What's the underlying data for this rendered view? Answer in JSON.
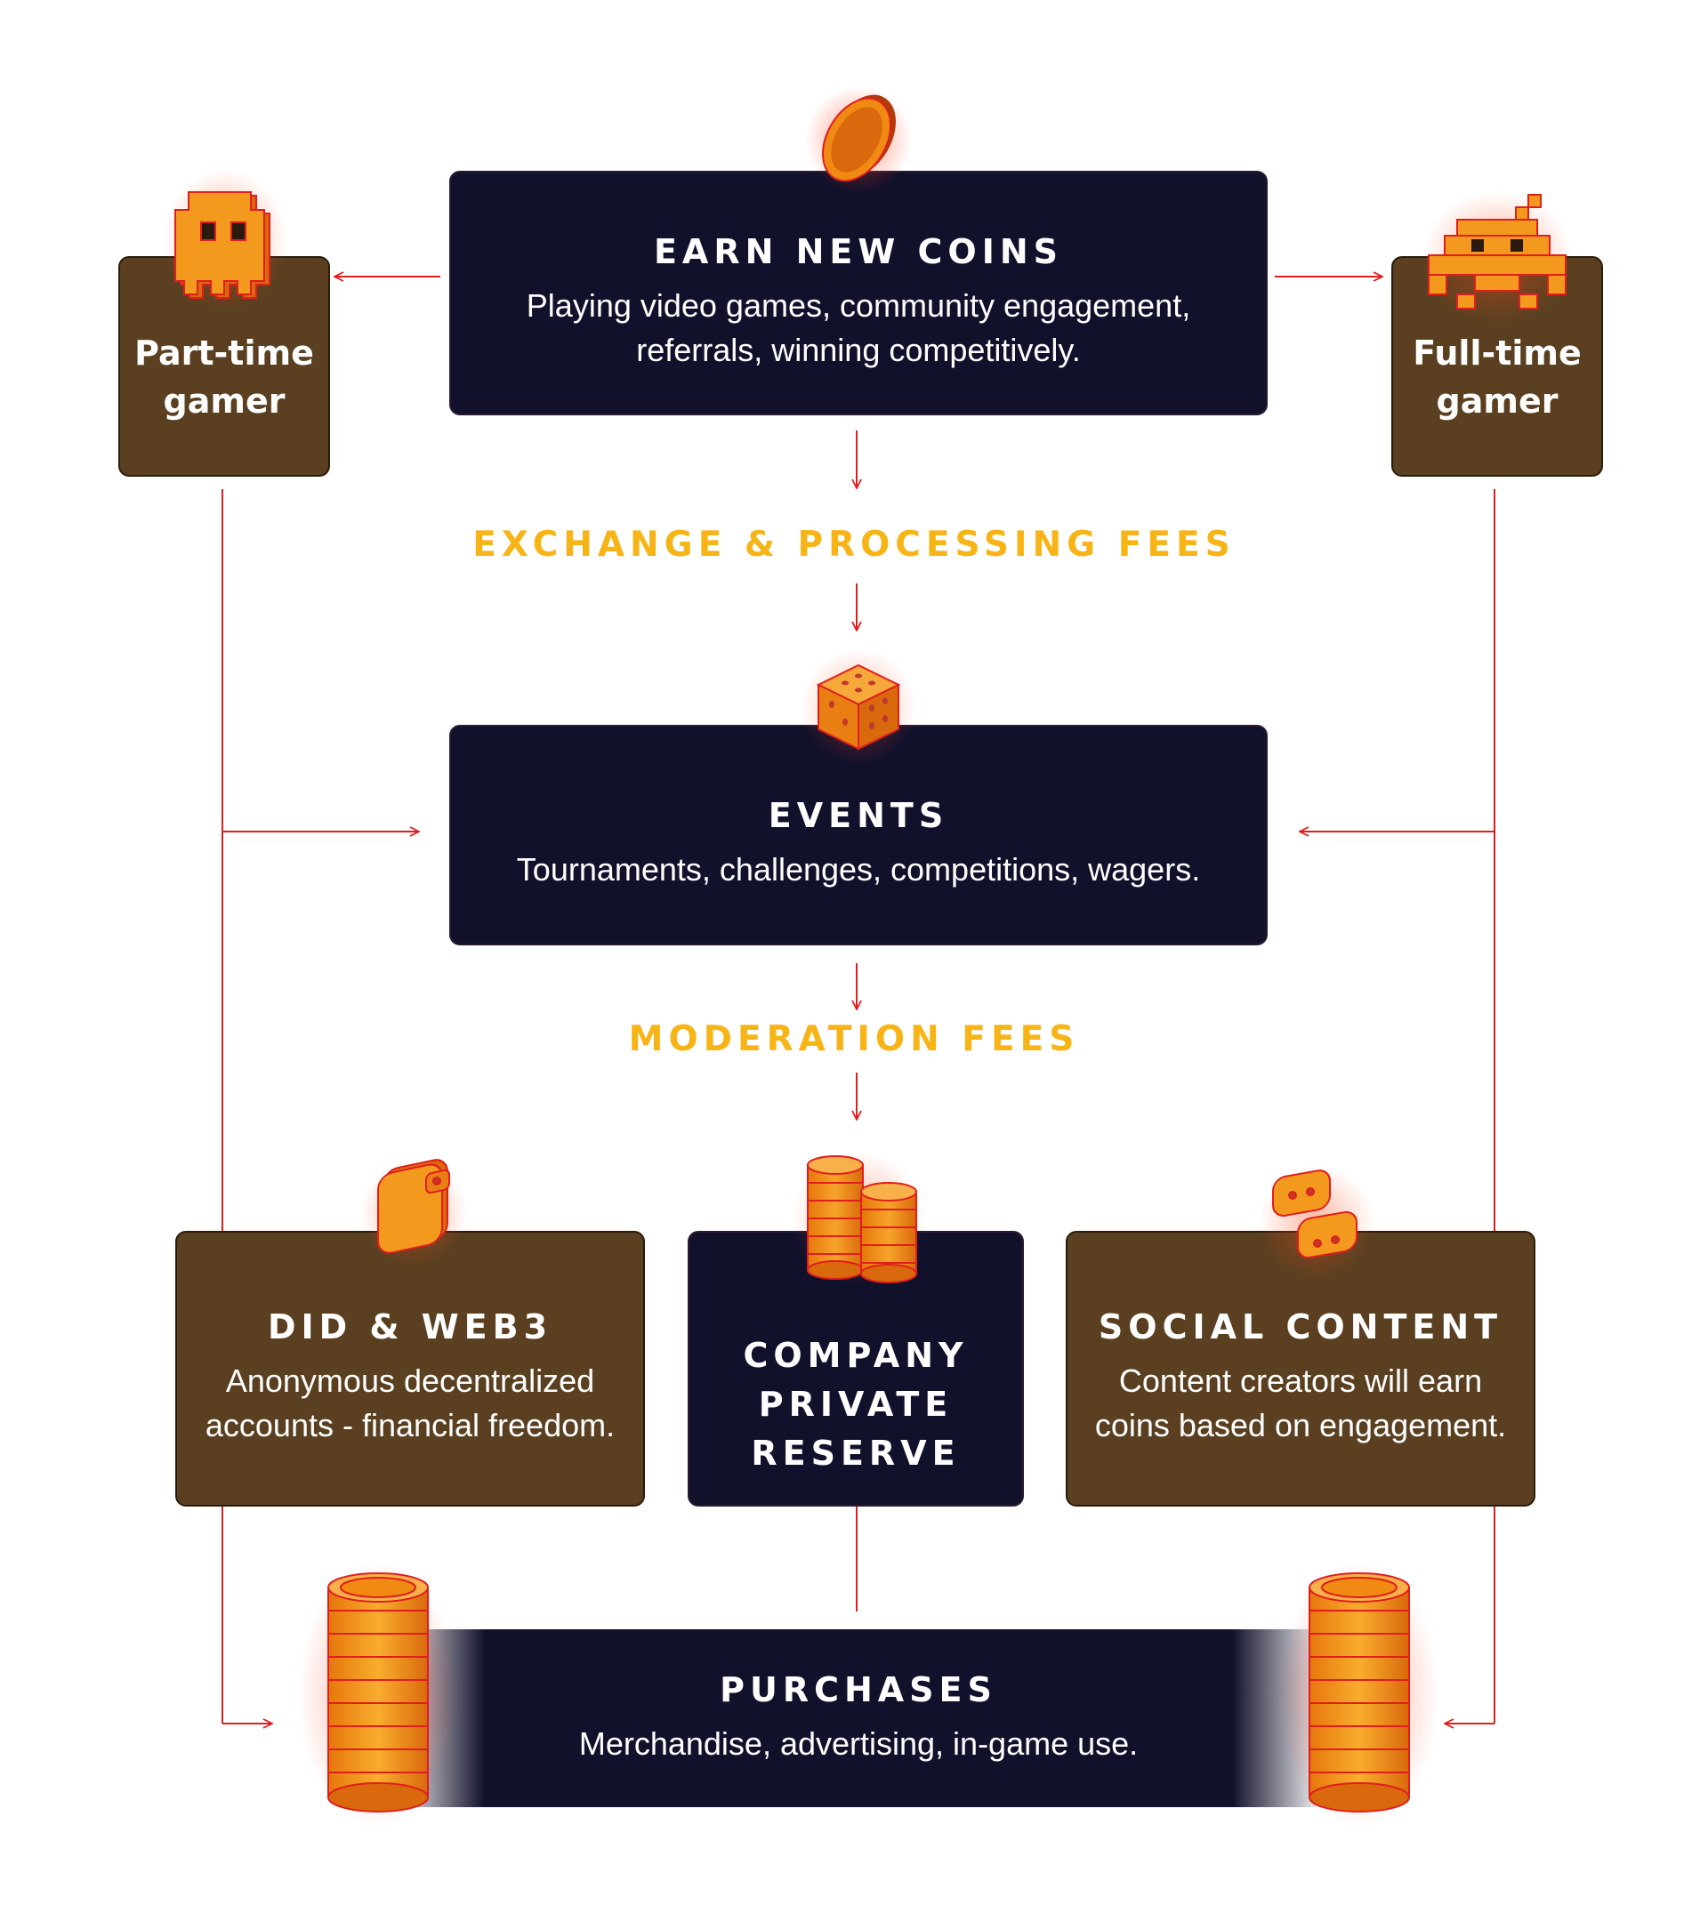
{
  "earn": {
    "title": "EARN NEW COINS",
    "line1": "Playing video games, community engagement,",
    "line2": "referrals, winning competitively."
  },
  "part_time": {
    "line1": "Part-time",
    "line2": "gamer"
  },
  "full_time": {
    "line1": "Full-time",
    "line2": "gamer"
  },
  "fees": {
    "exchange": "EXCHANGE & PROCESSING FEES",
    "moderation": "MODERATION FEES"
  },
  "events": {
    "title": "EVENTS",
    "desc": "Tournaments, challenges, competitions, wagers."
  },
  "did": {
    "title": "DID & WEB3",
    "line1": "Anonymous decentralized",
    "line2": "accounts - financial freedom."
  },
  "reserve": {
    "line1": "COMPANY",
    "line2": "PRIVATE",
    "line3": "RESERVE"
  },
  "social": {
    "title": "SOCIAL CONTENT",
    "line1": "Content creators will earn",
    "line2": "coins based on engagement."
  },
  "purchases": {
    "title": "PURCHASES",
    "desc": "Merchandise, advertising, in-game use."
  },
  "colors": {
    "navy": "#12112c",
    "brown": "#5a4020",
    "accent_yellow": "#f7b417",
    "connector_red": "#e01e1e",
    "coin_orange": "#f08a12"
  },
  "icons": [
    "coin-icon",
    "ghost-icon",
    "space-invader-icon",
    "dice-icon",
    "wallet-icon",
    "coin-stacks-icon",
    "chat-bubbles-icon",
    "coin-stack-icon"
  ]
}
